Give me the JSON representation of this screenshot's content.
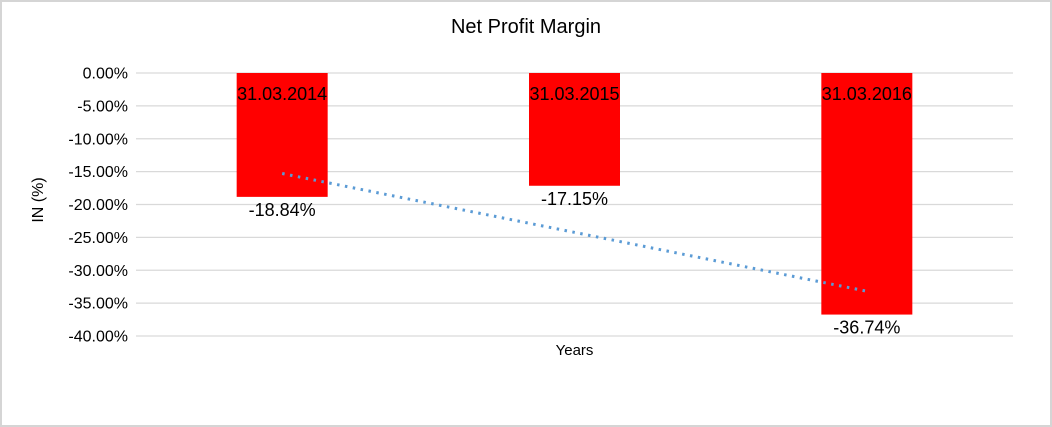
{
  "frame": {
    "border_color": "#d5d5d5"
  },
  "chart_data": {
    "type": "bar",
    "title": "Net Profit Margin",
    "xlabel": "Years",
    "ylabel": "IN (%)",
    "categories": [
      "31.03.2014",
      "31.03.2015",
      "31.03.2016"
    ],
    "values": [
      -18.84,
      -17.15,
      -36.74
    ],
    "value_labels": [
      "-18.84%",
      "-17.15%",
      "-36.74%"
    ],
    "ylim": [
      -40,
      0
    ],
    "ytick_step": 5,
    "ytick_labels": [
      "0.00%",
      "-5.00%",
      "-10.00%",
      "-15.00%",
      "-20.00%",
      "-25.00%",
      "-30.00%",
      "-35.00%",
      "-40.00%"
    ],
    "grid": true,
    "legend": false,
    "bar_color": "#FF0000",
    "grid_color": "#D9D9D9",
    "label_color": "#000000",
    "trendline": {
      "type": "linear",
      "style": "dotted",
      "color": "#5B9BD5",
      "start_value": -15.29,
      "end_value": -33.19
    }
  }
}
